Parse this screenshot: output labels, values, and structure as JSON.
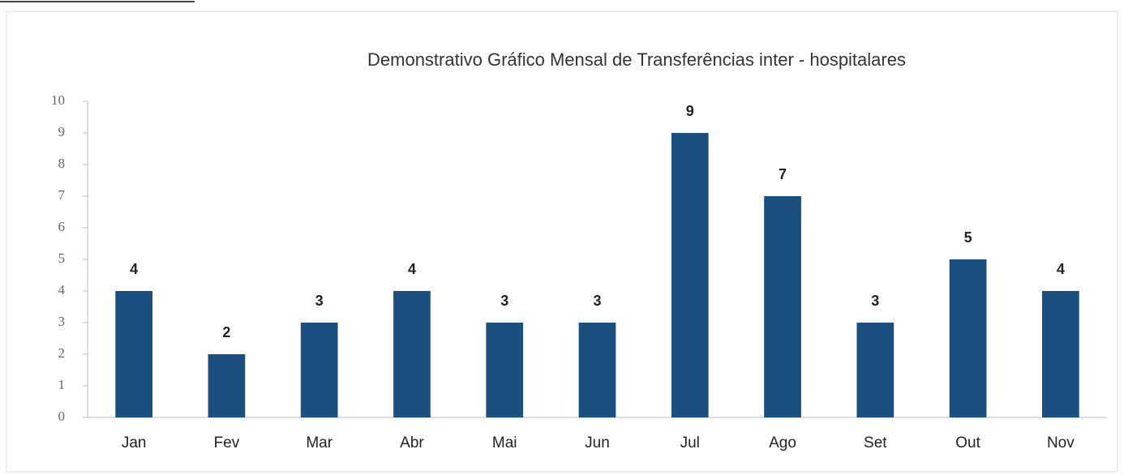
{
  "chart_data": {
    "type": "bar",
    "title": "Demonstrativo Gráfico Mensal de Transferências inter - hospitalares",
    "categories": [
      "Jan",
      "Fev",
      "Mar",
      "Abr",
      "Mai",
      "Jun",
      "Jul",
      "Ago",
      "Set",
      "Out",
      "Nov"
    ],
    "values": [
      4,
      2,
      3,
      4,
      3,
      3,
      9,
      7,
      3,
      5,
      4
    ],
    "color": "#1b4f80",
    "ylim": [
      0,
      10
    ],
    "yticks": [
      0,
      1,
      2,
      3,
      4,
      5,
      6,
      7,
      8,
      9,
      10
    ],
    "grid": false
  }
}
